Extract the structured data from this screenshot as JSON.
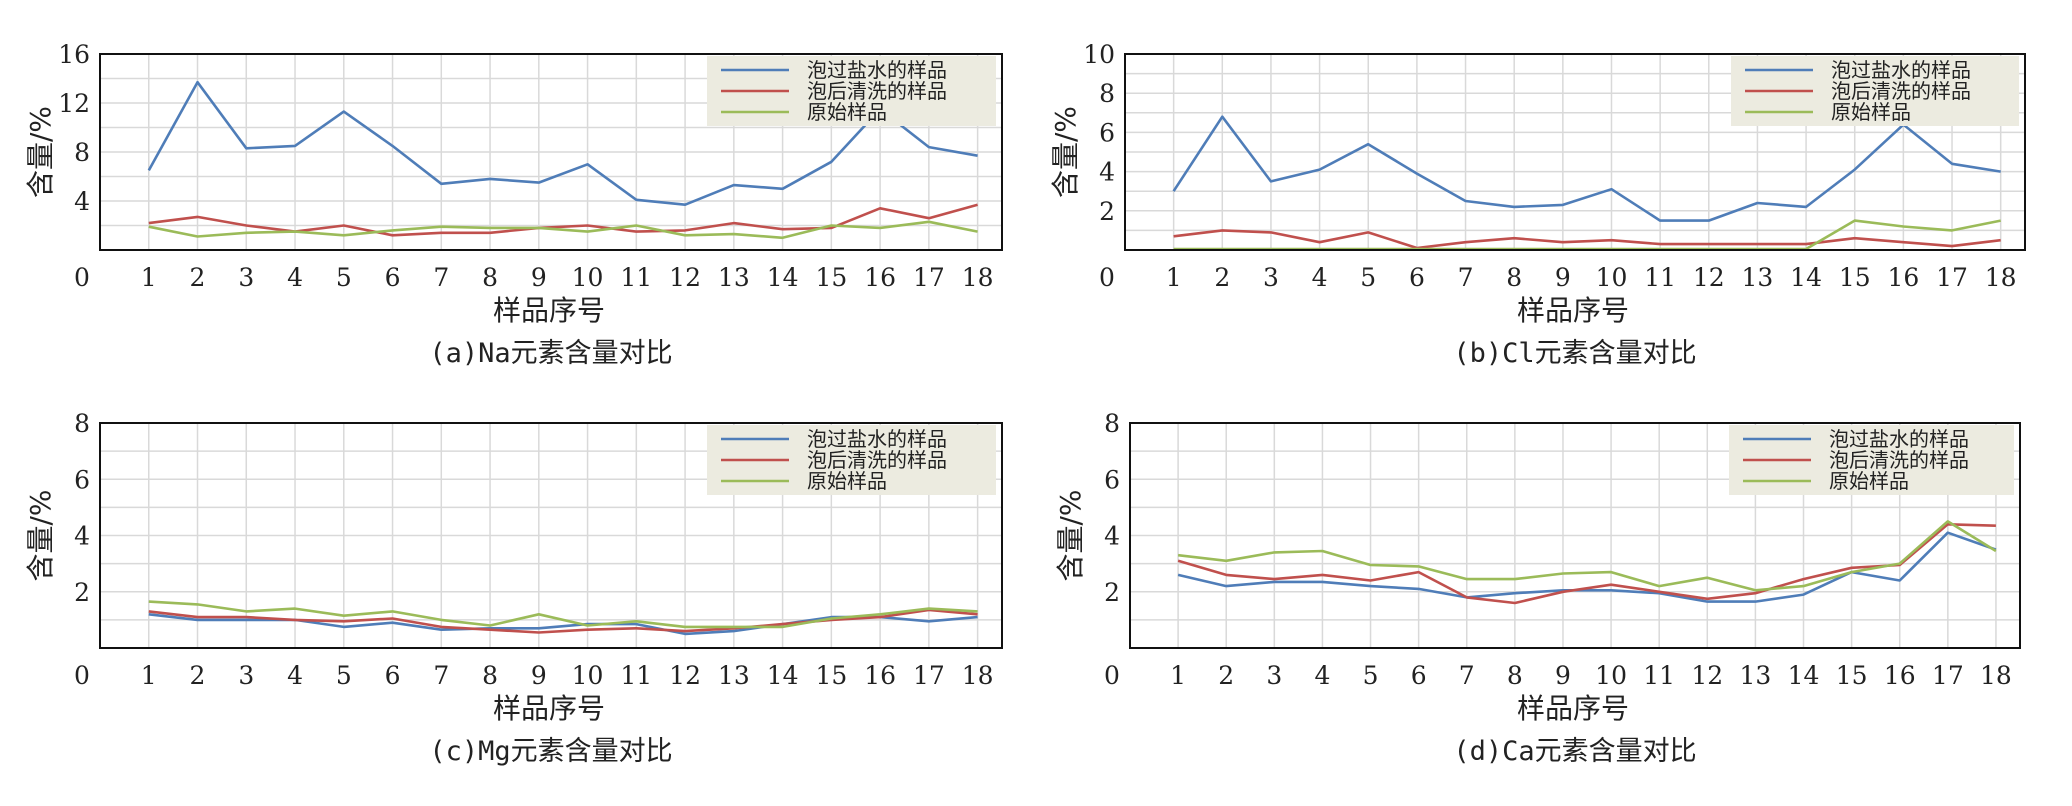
{
  "colors": {
    "series_1": "#4f7db8",
    "series_2": "#c0504d",
    "series_3": "#9bbb59",
    "legend_bg": "#ecebe0",
    "grid": "#d9d9d9",
    "frame": "#111111"
  },
  "chart_data": [
    {
      "type": "line",
      "caption": "(a)Na元素含量对比",
      "xlabel": "样品序号",
      "ylabel": "含量/%",
      "x": [
        1,
        2,
        3,
        4,
        5,
        6,
        7,
        8,
        9,
        10,
        11,
        12,
        13,
        14,
        15,
        16,
        17,
        18
      ],
      "x_origin_label": "0",
      "ylim": [
        0,
        16
      ],
      "yticks": [
        4,
        8,
        12,
        16
      ],
      "grid": true,
      "legend_position": "top-right",
      "series": [
        {
          "name": "泡过盐水的样品",
          "values": [
            6.5,
            13.7,
            8.3,
            8.5,
            11.3,
            8.5,
            5.4,
            5.8,
            5.5,
            7.0,
            4.1,
            3.7,
            5.3,
            5.0,
            7.2,
            11.5,
            8.4,
            7.7
          ]
        },
        {
          "name": "泡后清洗的样品",
          "values": [
            2.2,
            2.7,
            2.0,
            1.5,
            2.0,
            1.2,
            1.4,
            1.4,
            1.8,
            2.0,
            1.5,
            1.6,
            2.2,
            1.7,
            1.8,
            3.4,
            2.6,
            3.7
          ]
        },
        {
          "name": "原始样品",
          "values": [
            1.9,
            1.1,
            1.4,
            1.5,
            1.2,
            1.6,
            1.9,
            1.8,
            1.8,
            1.5,
            2.0,
            1.2,
            1.3,
            1.0,
            2.0,
            1.8,
            2.3,
            1.5
          ]
        }
      ]
    },
    {
      "type": "line",
      "caption": "(b)Cl元素含量对比",
      "xlabel": "样品序号",
      "ylabel": "含量/%",
      "x": [
        1,
        2,
        3,
        4,
        5,
        6,
        7,
        8,
        9,
        10,
        11,
        12,
        13,
        14,
        15,
        16,
        17,
        18
      ],
      "x_origin_label": "0",
      "ylim": [
        0,
        10
      ],
      "yticks": [
        2,
        4,
        6,
        8,
        10
      ],
      "grid": true,
      "legend_position": "top-right",
      "series": [
        {
          "name": "泡过盐水的样品",
          "values": [
            3.0,
            6.8,
            3.5,
            4.1,
            5.4,
            3.9,
            2.5,
            2.2,
            2.3,
            3.1,
            1.5,
            1.5,
            2.4,
            2.2,
            4.1,
            6.4,
            4.4,
            4.0
          ]
        },
        {
          "name": "泡后清洗的样品",
          "values": [
            0.7,
            1.0,
            0.9,
            0.4,
            0.9,
            0.1,
            0.4,
            0.6,
            0.4,
            0.5,
            0.3,
            0.3,
            0.3,
            0.3,
            0.6,
            0.4,
            0.2,
            0.5
          ]
        },
        {
          "name": "原始样品",
          "values": [
            0.05,
            0.05,
            0.05,
            0.05,
            0.05,
            0.05,
            0.05,
            0.05,
            0.05,
            0.05,
            0.05,
            0.05,
            0.05,
            0.05,
            1.5,
            1.2,
            1.0,
            1.5
          ]
        }
      ]
    },
    {
      "type": "line",
      "caption": "(c)Mg元素含量对比",
      "xlabel": "样品序号",
      "ylabel": "含量/%",
      "x": [
        1,
        2,
        3,
        4,
        5,
        6,
        7,
        8,
        9,
        10,
        11,
        12,
        13,
        14,
        15,
        16,
        17,
        18
      ],
      "x_origin_label": "0",
      "ylim": [
        0,
        8
      ],
      "yticks": [
        2,
        4,
        6,
        8
      ],
      "grid": true,
      "legend_position": "top-right",
      "series": [
        {
          "name": "泡过盐水的样品",
          "values": [
            1.2,
            1.0,
            1.0,
            1.0,
            0.75,
            0.9,
            0.65,
            0.7,
            0.7,
            0.85,
            0.85,
            0.5,
            0.6,
            0.85,
            1.1,
            1.1,
            0.95,
            1.1
          ]
        },
        {
          "name": "泡后清洗的样品",
          "values": [
            1.3,
            1.1,
            1.1,
            1.0,
            0.95,
            1.05,
            0.75,
            0.65,
            0.55,
            0.65,
            0.7,
            0.6,
            0.7,
            0.85,
            1.0,
            1.1,
            1.35,
            1.2
          ]
        },
        {
          "name": "原始样品",
          "values": [
            1.65,
            1.55,
            1.3,
            1.4,
            1.15,
            1.3,
            1.0,
            0.8,
            1.2,
            0.8,
            0.95,
            0.75,
            0.75,
            0.75,
            1.05,
            1.2,
            1.4,
            1.3
          ]
        }
      ]
    },
    {
      "type": "line",
      "caption": "(d)Ca元素含量对比",
      "xlabel": "样品序号",
      "ylabel": "含量/%",
      "x": [
        1,
        2,
        3,
        4,
        5,
        6,
        7,
        8,
        9,
        10,
        11,
        12,
        13,
        14,
        15,
        16,
        17,
        18
      ],
      "x_origin_label": "0",
      "ylim": [
        0,
        8
      ],
      "yticks": [
        2,
        4,
        6,
        8
      ],
      "grid": true,
      "legend_position": "top-right",
      "series": [
        {
          "name": "泡过盐水的样品",
          "values": [
            2.6,
            2.2,
            2.35,
            2.35,
            2.2,
            2.1,
            1.8,
            1.95,
            2.05,
            2.05,
            1.95,
            1.65,
            1.65,
            1.9,
            2.7,
            2.4,
            4.1,
            3.5
          ]
        },
        {
          "name": "泡后清洗的样品",
          "values": [
            3.1,
            2.6,
            2.45,
            2.6,
            2.4,
            2.7,
            1.8,
            1.6,
            2.0,
            2.25,
            2.0,
            1.75,
            1.95,
            2.45,
            2.85,
            2.95,
            4.4,
            4.35
          ]
        },
        {
          "name": "原始样品",
          "values": [
            3.3,
            3.1,
            3.4,
            3.45,
            2.95,
            2.9,
            2.45,
            2.45,
            2.65,
            2.7,
            2.2,
            2.5,
            2.05,
            2.2,
            2.7,
            3.0,
            4.5,
            3.45
          ]
        }
      ]
    }
  ]
}
